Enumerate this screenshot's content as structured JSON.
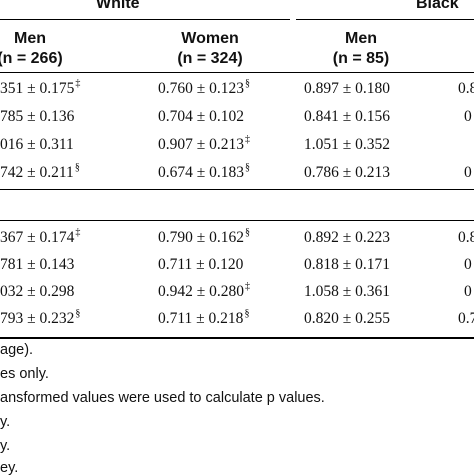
{
  "header": {
    "groups": [
      "White",
      "Black"
    ],
    "columns": [
      {
        "title": "Men",
        "n": "(n = 266)"
      },
      {
        "title": "Women",
        "n": "(n = 324)"
      },
      {
        "title": "Men",
        "n": "(n = 85)"
      }
    ]
  },
  "block1": [
    {
      "c1": "351 ± 0.175",
      "s1": "‡",
      "c2": "0.760 ± 0.123",
      "s2": "§",
      "c3": "0.897 ± 0.180",
      "c4": "0.8"
    },
    {
      "c1": "785 ± 0.136",
      "s1": "",
      "c2": "0.704 ± 0.102",
      "s2": "",
      "c3": "0.841 ± 0.156",
      "c4": "0"
    },
    {
      "c1": "016 ± 0.311",
      "s1": "",
      "c2": "0.907 ± 0.213",
      "s2": "‡",
      "c3": "1.051 ± 0.352",
      "c4": ""
    },
    {
      "c1": "742 ± 0.211",
      "s1": "§",
      "c2": "0.674 ± 0.183",
      "s2": "§",
      "c3": "0.786 ± 0.213",
      "c4": "0"
    }
  ],
  "block2": [
    {
      "c1": "367 ± 0.174",
      "s1": "‡",
      "c2": "0.790 ± 0.162",
      "s2": "§",
      "c3": "0.892 ± 0.223",
      "c4": "0.8"
    },
    {
      "c1": "781 ± 0.143",
      "s1": "",
      "c2": "0.711 ± 0.120",
      "s2": "",
      "c3": "0.818 ± 0.171",
      "c4": "0"
    },
    {
      "c1": "032 ± 0.298",
      "s1": "",
      "c2": "0.942 ± 0.280",
      "s2": "‡",
      "c3": "1.058 ± 0.361",
      "c4": "0"
    },
    {
      "c1": "793 ± 0.232",
      "s1": "§",
      "c2": "0.711 ± 0.218",
      "s2": "§",
      "c3": "0.820 ± 0.255",
      "c4": "0.7"
    }
  ],
  "footnotes": [
    "age).",
    "es only.",
    "ansformed values were used to calculate p values.",
    "y.",
    "y.",
    "ey."
  ]
}
